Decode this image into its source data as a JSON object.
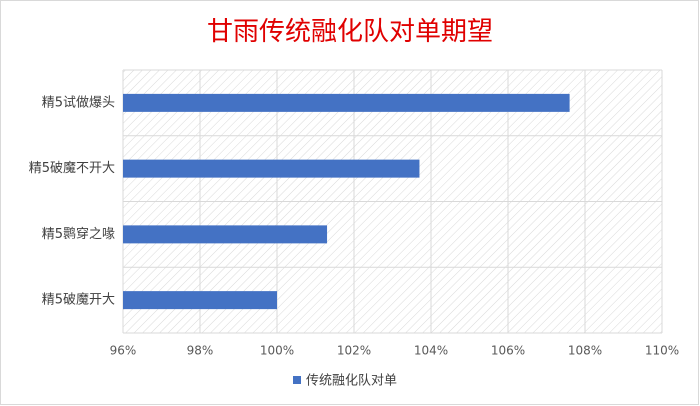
{
  "chart_data": {
    "type": "bar",
    "orientation": "horizontal",
    "title": "甘雨传统融化队对单期望",
    "categories": [
      "精5试做爆头",
      "精5破魔不开大",
      "精5鹮穿之喙",
      "精5破魔开大"
    ],
    "series": [
      {
        "name": "传统融化队对单",
        "color": "#4472c4",
        "values": [
          107.6,
          103.7,
          101.3,
          100.0
        ]
      }
    ],
    "xlim": [
      96,
      110
    ],
    "xticks": [
      {
        "value": 96,
        "label": "96%"
      },
      {
        "value": 98,
        "label": "98%"
      },
      {
        "value": 100,
        "label": "100%"
      },
      {
        "value": 102,
        "label": "102%"
      },
      {
        "value": 104,
        "label": "104%"
      },
      {
        "value": 106,
        "label": "106%"
      },
      {
        "value": 108,
        "label": "108%"
      },
      {
        "value": 110,
        "label": "110%"
      }
    ],
    "grid": true,
    "legend": "bottom"
  }
}
